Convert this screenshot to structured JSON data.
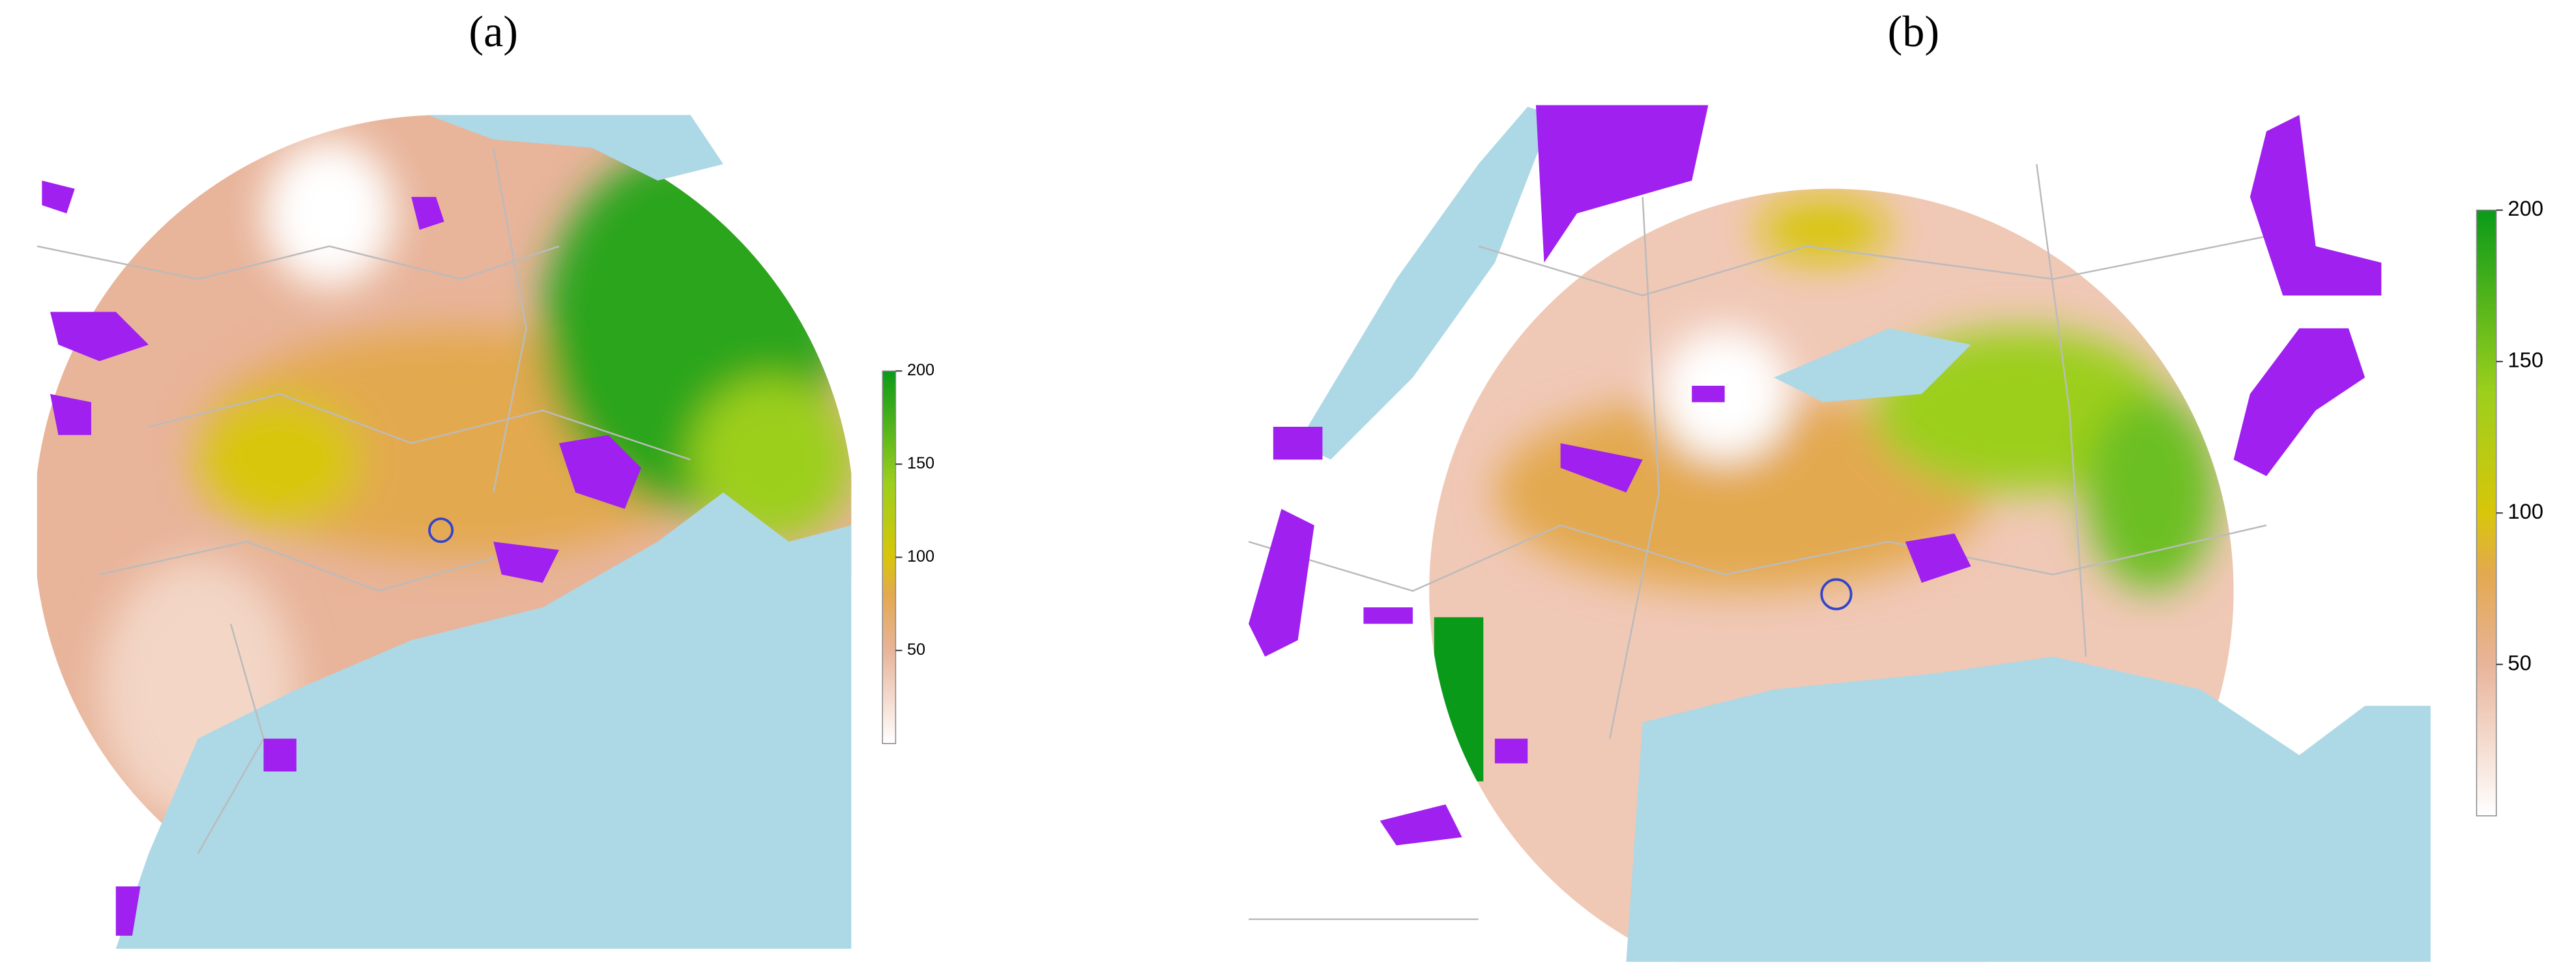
{
  "panels": [
    {
      "label": "(a)",
      "colorbar": {
        "lim": [
          0,
          200
        ],
        "ticks": [
          50,
          100,
          150,
          200
        ]
      }
    },
    {
      "label": "(b)",
      "colorbar": {
        "lim": [
          0,
          200
        ],
        "ticks": [
          50,
          100,
          150,
          200
        ]
      }
    }
  ]
}
